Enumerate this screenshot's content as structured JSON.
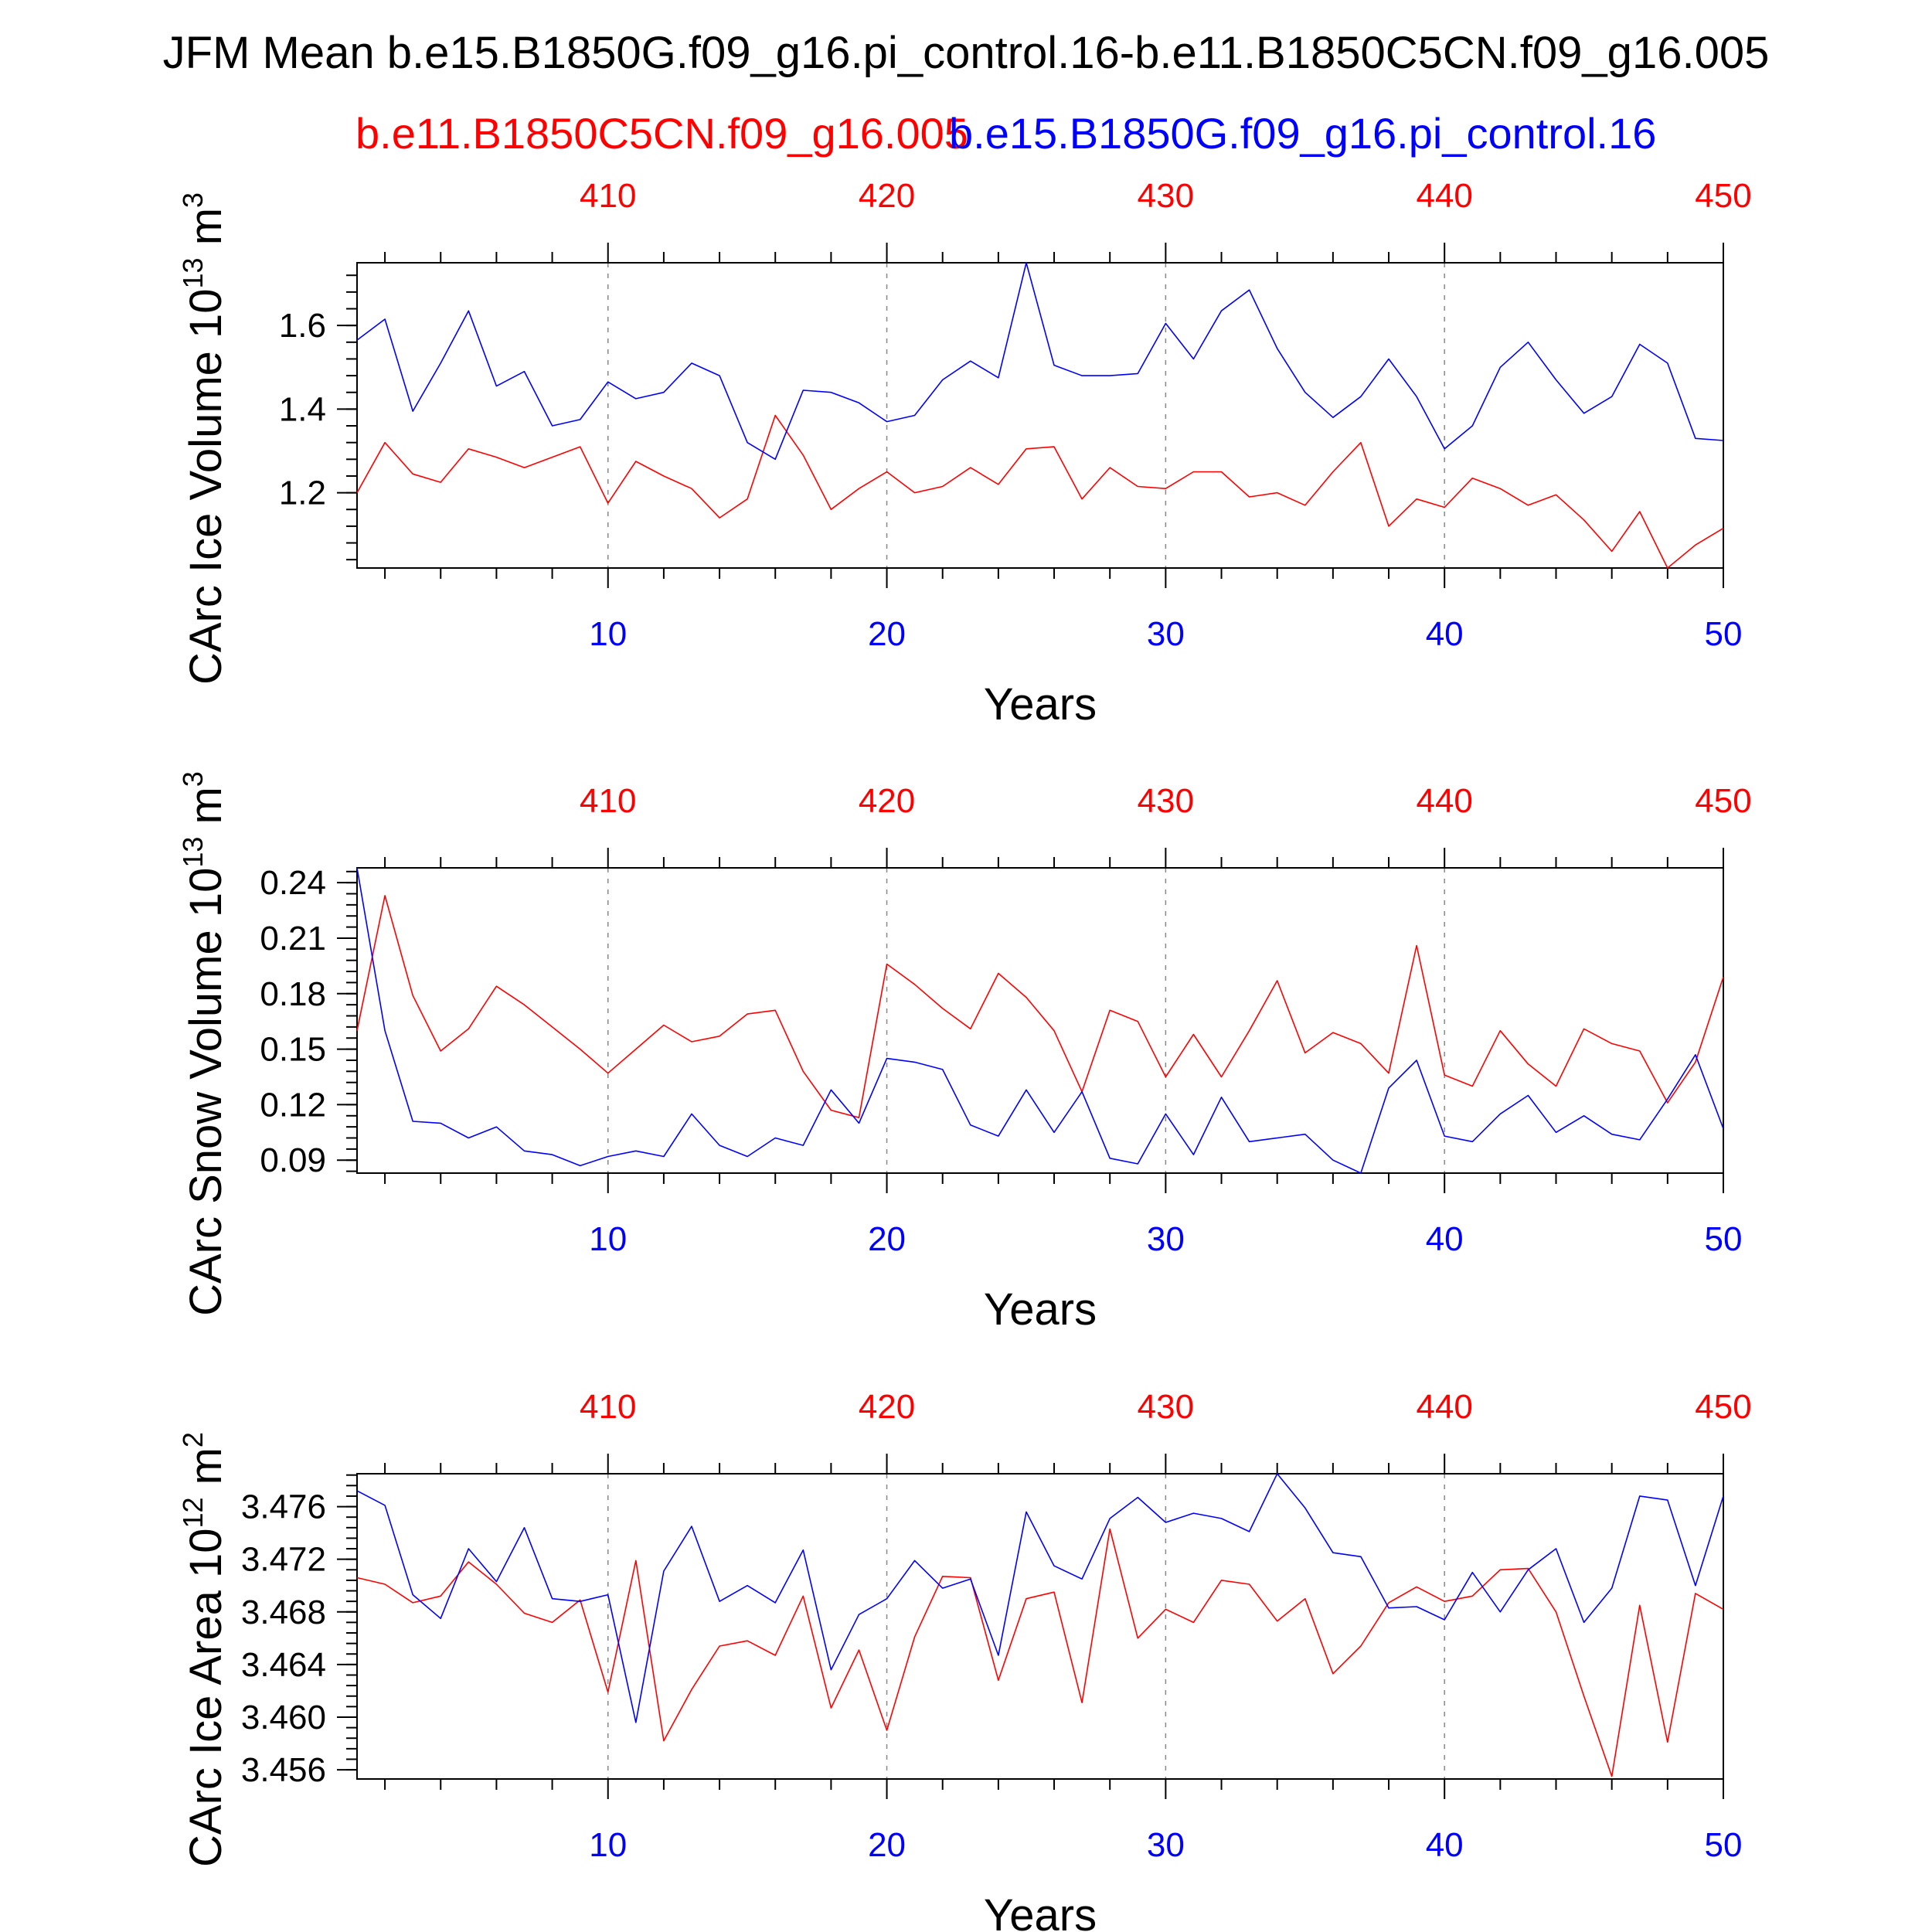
{
  "title": "JFM Mean b.e15.B1850G.f09_g16.pi_control.16-b.e11.B1850C5CN.f09_g16.005",
  "legend": {
    "red_case": "b.e11.B1850C5CN.f09_g16.005",
    "blue_case": "b.e15.B1850G.f09_g16.pi_control.16"
  },
  "colors": {
    "red": "#ff0000",
    "blue": "#0000ff",
    "axis": "#000000",
    "grid": "#888888"
  },
  "chart_data": [
    {
      "type": "line",
      "ylabel_base": "CArc Ice Volume 10",
      "ylabel_exp": "13",
      "ylabel_unit": " m",
      "ylabel_unit_exp": "3",
      "xlabel": "Years",
      "xlim": [
        1,
        50
      ],
      "ylim": [
        1.02,
        1.75
      ],
      "yticks": [
        1.2,
        1.4,
        1.6
      ],
      "ytick_labels": [
        "1.2",
        "1.4",
        "1.6"
      ],
      "yminor_step": 0.04,
      "xticks_bottom": [
        10,
        20,
        30,
        40,
        50
      ],
      "xticks_top_labels": [
        "410",
        "420",
        "430",
        "440",
        "450"
      ],
      "grid": "vertical dashed at major x ticks",
      "series": [
        {
          "name": "b.e15.B1850G.f09_g16.pi_control.16",
          "color": "blue",
          "x": [
            1,
            2,
            3,
            4,
            5,
            6,
            7,
            8,
            9,
            10,
            11,
            12,
            13,
            14,
            15,
            16,
            17,
            18,
            19,
            20,
            21,
            22,
            23,
            24,
            25,
            26,
            27,
            28,
            29,
            30,
            31,
            32,
            33,
            34,
            35,
            36,
            37,
            38,
            39,
            40,
            41,
            42,
            43,
            44,
            45,
            46,
            47,
            48,
            49,
            50
          ],
          "values": [
            1.565,
            1.615,
            1.395,
            1.51,
            1.635,
            1.455,
            1.49,
            1.36,
            1.375,
            1.465,
            1.425,
            1.44,
            1.51,
            1.48,
            1.32,
            1.28,
            1.445,
            1.44,
            1.415,
            1.37,
            1.385,
            1.47,
            1.515,
            1.475,
            1.75,
            1.505,
            1.48,
            1.48,
            1.485,
            1.605,
            1.52,
            1.635,
            1.685,
            1.545,
            1.44,
            1.38,
            1.43,
            1.52,
            1.43,
            1.305,
            1.36,
            1.5,
            1.56,
            1.47,
            1.39,
            1.43,
            1.555,
            1.51,
            1.33,
            1.325
          ]
        },
        {
          "name": "b.e11.B1850C5CN.f09_g16.005",
          "color": "red",
          "x": [
            1,
            2,
            3,
            4,
            5,
            6,
            7,
            8,
            9,
            10,
            11,
            12,
            13,
            14,
            15,
            16,
            17,
            18,
            19,
            20,
            21,
            22,
            23,
            24,
            25,
            26,
            27,
            28,
            29,
            30,
            31,
            32,
            33,
            34,
            35,
            36,
            37,
            38,
            39,
            40,
            41,
            42,
            43,
            44,
            45,
            46,
            47,
            48,
            49,
            50
          ],
          "values": [
            1.2,
            1.32,
            1.245,
            1.225,
            1.305,
            1.285,
            1.26,
            1.285,
            1.31,
            1.175,
            1.275,
            1.24,
            1.21,
            1.14,
            1.185,
            1.385,
            1.29,
            1.16,
            1.21,
            1.25,
            1.2,
            1.215,
            1.26,
            1.22,
            1.305,
            1.31,
            1.185,
            1.26,
            1.215,
            1.21,
            1.25,
            1.25,
            1.19,
            1.2,
            1.17,
            1.25,
            1.32,
            1.12,
            1.185,
            1.165,
            1.235,
            1.21,
            1.17,
            1.195,
            1.135,
            1.06,
            1.155,
            1.02,
            1.075,
            1.115
          ]
        }
      ]
    },
    {
      "type": "line",
      "ylabel_base": "CArc Snow Volume 10",
      "ylabel_exp": "13",
      "ylabel_unit": " m",
      "ylabel_unit_exp": "3",
      "xlabel": "Years",
      "xlim": [
        1,
        50
      ],
      "ylim": [
        0.083,
        0.248
      ],
      "yticks": [
        0.09,
        0.12,
        0.15,
        0.18,
        0.21,
        0.24
      ],
      "ytick_labels": [
        "0.09",
        "0.12",
        "0.15",
        "0.18",
        "0.21",
        "0.24"
      ],
      "yminor_step": 0.006,
      "xticks_bottom": [
        10,
        20,
        30,
        40,
        50
      ],
      "xticks_top_labels": [
        "410",
        "420",
        "430",
        "440",
        "450"
      ],
      "grid": "vertical dashed at major x ticks",
      "series": [
        {
          "name": "b.e15.B1850G.f09_g16.pi_control.16",
          "color": "blue",
          "x": [
            1,
            2,
            3,
            4,
            5,
            6,
            7,
            8,
            9,
            10,
            11,
            12,
            13,
            14,
            15,
            16,
            17,
            18,
            19,
            20,
            21,
            22,
            23,
            24,
            25,
            26,
            27,
            28,
            29,
            30,
            31,
            32,
            33,
            34,
            35,
            36,
            37,
            38,
            39,
            40,
            41,
            42,
            43,
            44,
            45,
            46,
            47,
            48,
            49,
            50
          ],
          "values": [
            0.248,
            0.16,
            0.111,
            0.11,
            0.102,
            0.108,
            0.095,
            0.093,
            0.087,
            0.092,
            0.095,
            0.092,
            0.115,
            0.098,
            0.092,
            0.102,
            0.098,
            0.128,
            0.11,
            0.145,
            0.143,
            0.139,
            0.109,
            0.103,
            0.128,
            0.105,
            0.127,
            0.091,
            0.088,
            0.115,
            0.093,
            0.124,
            0.1,
            0.102,
            0.104,
            0.09,
            0.083,
            0.129,
            0.144,
            0.103,
            0.1,
            0.115,
            0.125,
            0.105,
            0.114,
            0.104,
            0.101,
            0.123,
            0.147,
            0.107
          ]
        },
        {
          "name": "b.e11.B1850C5CN.f09_g16.005",
          "color": "red",
          "x": [
            1,
            2,
            3,
            4,
            5,
            6,
            7,
            8,
            9,
            10,
            11,
            12,
            13,
            14,
            15,
            16,
            17,
            18,
            19,
            20,
            21,
            22,
            23,
            24,
            25,
            26,
            27,
            28,
            29,
            30,
            31,
            32,
            33,
            34,
            35,
            36,
            37,
            38,
            39,
            40,
            41,
            42,
            43,
            44,
            45,
            46,
            47,
            48,
            49,
            50
          ],
          "values": [
            0.16,
            0.233,
            0.179,
            0.149,
            0.161,
            0.184,
            0.174,
            0.162,
            0.15,
            0.137,
            0.15,
            0.163,
            0.154,
            0.157,
            0.169,
            0.171,
            0.138,
            0.117,
            0.113,
            0.196,
            0.185,
            0.172,
            0.161,
            0.191,
            0.178,
            0.16,
            0.127,
            0.171,
            0.165,
            0.135,
            0.158,
            0.135,
            0.16,
            0.187,
            0.148,
            0.159,
            0.153,
            0.137,
            0.206,
            0.136,
            0.13,
            0.16,
            0.142,
            0.13,
            0.161,
            0.153,
            0.149,
            0.121,
            0.143,
            0.189
          ]
        }
      ]
    },
    {
      "type": "line",
      "ylabel_base": "CArc Ice Area 10",
      "ylabel_exp": "12",
      "ylabel_unit": " m",
      "ylabel_unit_exp": "2",
      "xlabel": "Years",
      "xlim": [
        1,
        50
      ],
      "ylim": [
        3.4553,
        3.4785
      ],
      "yticks": [
        3.456,
        3.46,
        3.464,
        3.468,
        3.472,
        3.476
      ],
      "ytick_labels": [
        "3.456",
        "3.460",
        "3.464",
        "3.468",
        "3.472",
        "3.476"
      ],
      "yminor_step": 0.0008,
      "xticks_bottom": [
        10,
        20,
        30,
        40,
        50
      ],
      "xticks_top_labels": [
        "410",
        "420",
        "430",
        "440",
        "450"
      ],
      "grid": "vertical dashed at major x ticks",
      "series": [
        {
          "name": "b.e15.B1850G.f09_g16.pi_control.16",
          "color": "blue",
          "x": [
            1,
            2,
            3,
            4,
            5,
            6,
            7,
            8,
            9,
            10,
            11,
            12,
            13,
            14,
            15,
            16,
            17,
            18,
            19,
            20,
            21,
            22,
            23,
            24,
            25,
            26,
            27,
            28,
            29,
            30,
            31,
            32,
            33,
            34,
            35,
            36,
            37,
            38,
            39,
            40,
            41,
            42,
            43,
            44,
            45,
            46,
            47,
            48,
            49,
            50
          ],
          "values": [
            3.4772,
            3.4761,
            3.4693,
            3.4675,
            3.4728,
            3.4703,
            3.4744,
            3.469,
            3.4688,
            3.4693,
            3.4596,
            3.4711,
            3.4745,
            3.4688,
            3.47,
            3.4687,
            3.4727,
            3.4636,
            3.4678,
            3.469,
            3.4719,
            3.4698,
            3.4705,
            3.4647,
            3.4756,
            3.4715,
            3.4705,
            3.4751,
            3.4767,
            3.4748,
            3.4755,
            3.4751,
            3.4741,
            3.4785,
            3.4759,
            3.4725,
            3.4722,
            3.4683,
            3.4684,
            3.4674,
            3.471,
            3.468,
            3.4712,
            3.4728,
            3.4672,
            3.4698,
            3.4768,
            3.4765,
            3.47,
            3.4768
          ]
        },
        {
          "name": "b.e11.B1850C5CN.f09_g16.005",
          "color": "red",
          "x": [
            1,
            2,
            3,
            4,
            5,
            6,
            7,
            8,
            9,
            10,
            11,
            12,
            13,
            14,
            15,
            16,
            17,
            18,
            19,
            20,
            21,
            22,
            23,
            24,
            25,
            26,
            27,
            28,
            29,
            30,
            31,
            32,
            33,
            34,
            35,
            36,
            37,
            38,
            39,
            40,
            41,
            42,
            43,
            44,
            45,
            46,
            47,
            48,
            49,
            50
          ],
          "values": [
            3.4706,
            3.4701,
            3.4687,
            3.4692,
            3.4718,
            3.4701,
            3.4679,
            3.4672,
            3.4689,
            3.4619,
            3.4719,
            3.4582,
            3.4621,
            3.4654,
            3.4658,
            3.4647,
            3.4692,
            3.4607,
            3.4651,
            3.459,
            3.4661,
            3.4707,
            3.4706,
            3.4628,
            3.469,
            3.4695,
            3.4611,
            3.4743,
            3.466,
            3.4682,
            3.4672,
            3.4704,
            3.4701,
            3.4673,
            3.469,
            3.4633,
            3.4654,
            3.4687,
            3.4699,
            3.4688,
            3.4692,
            3.4712,
            3.4713,
            3.468,
            3.4616,
            3.4555,
            3.4685,
            3.4581,
            3.4694,
            3.4682
          ]
        }
      ]
    }
  ]
}
